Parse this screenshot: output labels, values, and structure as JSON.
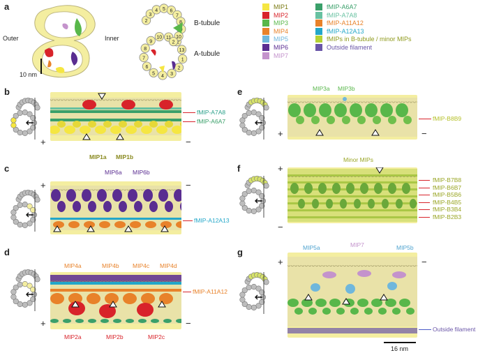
{
  "panels": {
    "a": "a",
    "b": "b",
    "c": "c",
    "d": "d",
    "e": "e",
    "f": "f",
    "g": "g"
  },
  "panel_a": {
    "outer": "Outer",
    "inner": "Inner",
    "scale": "10 nm",
    "b_tubule": "B-tubule",
    "a_tubule": "A-tubule",
    "pf_numbers": [
      "1",
      "2",
      "3",
      "4",
      "5",
      "6",
      "7",
      "8",
      "9",
      "10",
      "11",
      "12",
      "13"
    ]
  },
  "legend": [
    {
      "label": "MIP1",
      "color": "#f5e642"
    },
    {
      "label": "MIP2",
      "color": "#d8232a"
    },
    {
      "label": "MIP3",
      "color": "#58b74a"
    },
    {
      "label": "MIP4",
      "color": "#e8822a"
    },
    {
      "label": "MIP5",
      "color": "#6fb7dc"
    },
    {
      "label": "MIP6",
      "color": "#5a2d91"
    },
    {
      "label": "MIP7",
      "color": "#c493cc"
    },
    {
      "label": "fMIP-A6A7",
      "color": "#3aa06a"
    },
    {
      "label": "fMIP-A7A8",
      "color": "#67c1a1"
    },
    {
      "label": "fMIP-A11A12",
      "color": "#e8822a"
    },
    {
      "label": "fMIP-A12A13",
      "color": "#23a7c9"
    },
    {
      "label": "fMIPs in B-tubule / minor MIPs",
      "color": "#b5d334"
    },
    {
      "label": "Outside filament",
      "color": "#6a56a8"
    }
  ],
  "panel_b": {
    "arrows": [
      "fMIP-A7A8",
      "fMIP-A6A7"
    ],
    "labels": [
      "MIP1a",
      "MIP1b"
    ],
    "plus": "+",
    "minus": "−"
  },
  "panel_c": {
    "arrows": [
      "fMIP-A12A13"
    ],
    "labels": [
      "MIP6a",
      "MIP6b"
    ],
    "plus": "+",
    "minus": "−"
  },
  "panel_d": {
    "arrows": [
      "fMIP-A11A12"
    ],
    "top_labels": [
      "MIP4a",
      "MIP4b",
      "MIP4c",
      "MIP4d"
    ],
    "bottom_labels": [
      "MIP2a",
      "MIP2b",
      "MIP2c"
    ],
    "plus": "+",
    "minus": "−"
  },
  "panel_e": {
    "arrows": [
      "fMIP-B8B9"
    ],
    "labels": [
      "MIP3a",
      "MIP3b"
    ],
    "plus": "+",
    "minus": "−"
  },
  "panel_f": {
    "arrows": [
      "fMIP-B7B8",
      "fMIP-B6B7",
      "fMIP-B5B6",
      "fMIP-B4B5",
      "fMIP-B3B4",
      "fMIP-B2B3"
    ],
    "labels": [
      "Minor MIPs"
    ],
    "plus": "+",
    "minus": "−"
  },
  "panel_g": {
    "arrows": [
      "Outside filament"
    ],
    "labels": [
      "MIP5a",
      "MIP7",
      "MIP5b"
    ],
    "plus": "+",
    "minus": "−",
    "scale": "16 nm"
  }
}
